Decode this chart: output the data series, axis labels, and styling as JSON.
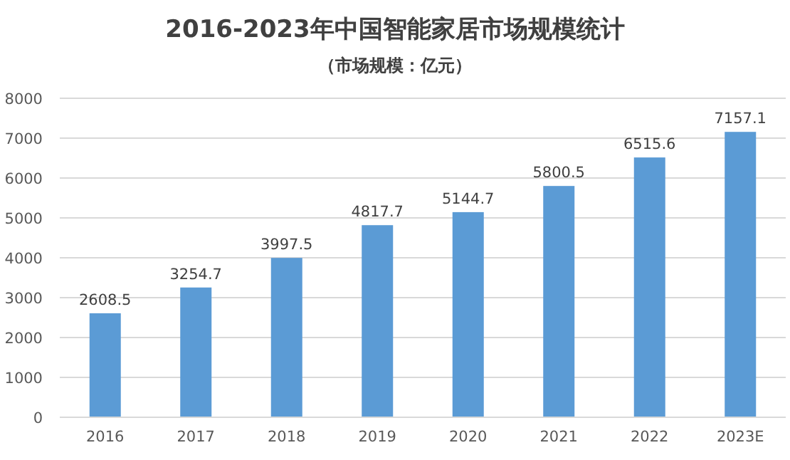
{
  "chart_data": {
    "type": "bar",
    "title": "2016-2023年中国智能家居市场规模统计",
    "subtitle": "（市场规模：亿元）",
    "categories": [
      "2016",
      "2017",
      "2018",
      "2019",
      "2020",
      "2021",
      "2022",
      "2023E"
    ],
    "values": [
      2608.5,
      3254.7,
      3997.5,
      4817.7,
      5144.7,
      5800.5,
      6515.6,
      7157.1
    ],
    "color": "#5b9bd5",
    "ylim": [
      0,
      8000
    ],
    "yticks": [
      0,
      1000,
      2000,
      3000,
      4000,
      5000,
      6000,
      7000,
      8000
    ],
    "grid": "y",
    "data_labels": true
  }
}
